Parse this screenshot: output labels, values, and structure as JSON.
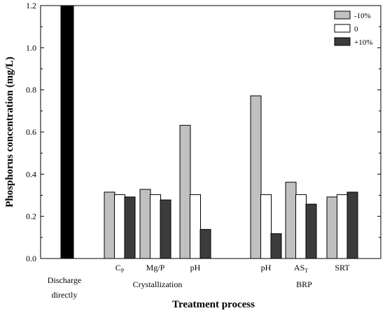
{
  "chart_data": {
    "type": "bar",
    "xlabel": "Treatment process",
    "ylabel": "Phosphorus concentration (mg/L)",
    "ylim": [
      0,
      1.2
    ],
    "yticks": [
      "0.0",
      "0.2",
      "0.4",
      "0.6",
      "0.8",
      "1.0",
      "1.2"
    ],
    "legend_position": "top-right",
    "series": [
      {
        "name": "-10%",
        "color": "#c0c0c0"
      },
      {
        "name": "0",
        "color": "#ffffff"
      },
      {
        "name": "+10%",
        "color": "#3c3c3c"
      }
    ],
    "discharge": {
      "label_line1": "Discharge",
      "label_line2": "directly",
      "value": 1.2,
      "color": "#000000"
    },
    "groups": [
      {
        "name": "Crystallization",
        "categories": [
          {
            "label": "C",
            "subscript": "P",
            "values": [
              0.315,
              0.303,
              0.292
            ]
          },
          {
            "label": "Mg/P",
            "subscript": "",
            "values": [
              0.328,
              0.303,
              0.278
            ]
          },
          {
            "label": "pH",
            "subscript": "",
            "values": [
              0.632,
              0.303,
              0.138
            ]
          }
        ]
      },
      {
        "name": "BRP",
        "categories": [
          {
            "label": "pH",
            "subscript": "",
            "values": [
              0.772,
              0.303,
              0.118
            ]
          },
          {
            "label": "AS",
            "subscript": "T",
            "values": [
              0.362,
              0.303,
              0.258
            ]
          },
          {
            "label": "SRT",
            "subscript": "",
            "values": [
              0.292,
              0.303,
              0.315
            ]
          }
        ]
      }
    ]
  }
}
